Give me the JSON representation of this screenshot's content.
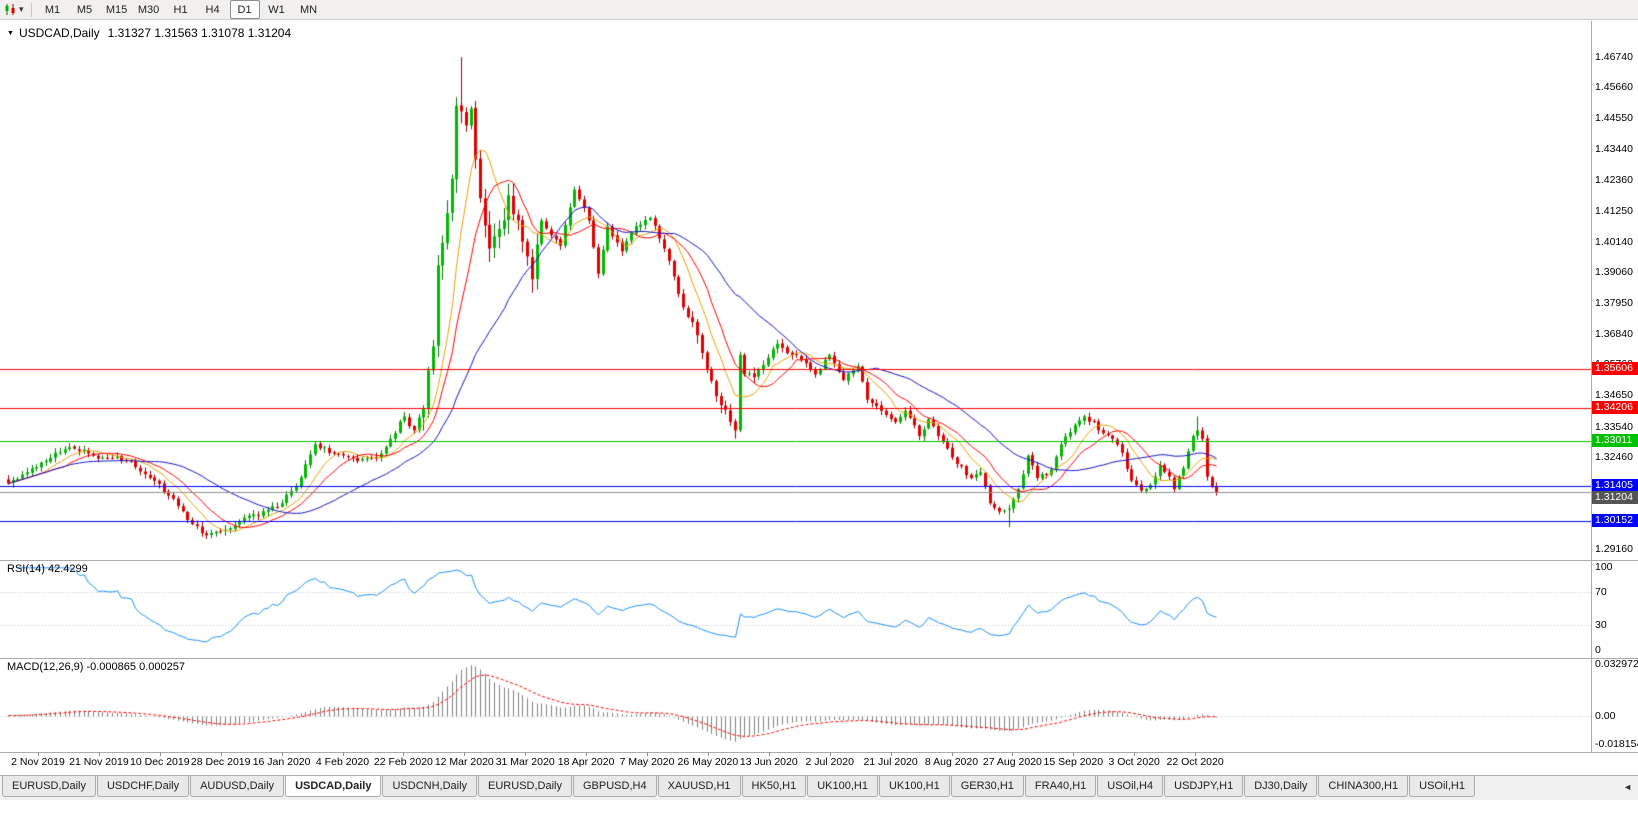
{
  "icons": {
    "chart_type": "candlestick-chart",
    "dropdown_caret": "▾",
    "title_collapse": "▼",
    "tab_scroll_left": "◄"
  },
  "toolbar": {
    "timeframes": [
      "M1",
      "M5",
      "M15",
      "M30",
      "H1",
      "H4",
      "D1",
      "W1",
      "MN"
    ],
    "active_timeframe": "D1"
  },
  "chart_header": {
    "title": "USDCAD,Daily",
    "ohlc_text": "1.31327 1.31563 1.31078 1.31204"
  },
  "chart_data": {
    "type": "candlestick",
    "symbol": "USDCAD",
    "period": "Daily",
    "last_quote": {
      "open": 1.31327,
      "high": 1.31563,
      "low": 1.31078,
      "close": 1.31204
    },
    "price_axis": {
      "min": 1.2877,
      "max": 1.4803,
      "ticks": [
        "1.46740",
        "1.45660",
        "1.44550",
        "1.43440",
        "1.42360",
        "1.41250",
        "1.40140",
        "1.39060",
        "1.37950",
        "1.36840",
        "1.35760",
        "1.34650",
        "1.33540",
        "1.32460",
        "1.31350",
        "1.30240",
        "1.29160"
      ]
    },
    "time_axis": {
      "labels": [
        "2 Nov 2019",
        "21 Nov 2019",
        "10 Dec 2019",
        "28 Dec 2019",
        "16 Jan 2020",
        "4 Feb 2020",
        "22 Feb 2020",
        "12 Mar 2020",
        "31 Mar 2020",
        "18 Apr 2020",
        "7 May 2020",
        "26 May 2020",
        "13 Jun 2020",
        "2 Jul 2020",
        "21 Jul 2020",
        "8 Aug 2020",
        "27 Aug 2020",
        "15 Sep 2020",
        "3 Oct 2020",
        "22 Oct 2020"
      ]
    },
    "horizontal_levels": [
      {
        "price": 1.35606,
        "label": "1.35606",
        "color": "#FF0000"
      },
      {
        "price": 1.34206,
        "label": "1.34206",
        "color": "#FF0000"
      },
      {
        "price": 1.33011,
        "label": "1.33011",
        "color": "#00C000"
      },
      {
        "price": 1.31405,
        "label": "1.31405",
        "color": "#0000FF"
      },
      {
        "price": 1.30152,
        "label": "1.30152",
        "color": "#0000FF"
      }
    ],
    "current_price_line": {
      "price": 1.31204,
      "label": "1.31204",
      "line_color": "#909090",
      "badge_color": "#555555"
    },
    "moving_averages": [
      {
        "period": 8,
        "color": "#E8A200"
      },
      {
        "period": 13,
        "color": "#FF0000"
      },
      {
        "period": 30,
        "color": "#1414CC"
      }
    ],
    "candles": {
      "count": 257,
      "up_color": "#00B800",
      "up_dark": "#007A00",
      "down_color": "#E00000",
      "down_dark": "#A00000",
      "close_anchors": [
        [
          0,
          1.315
        ],
        [
          5,
          1.3205
        ],
        [
          10,
          1.326
        ],
        [
          13,
          1.328
        ],
        [
          18,
          1.325
        ],
        [
          26,
          1.323
        ],
        [
          31,
          1.316
        ],
        [
          36,
          1.307
        ],
        [
          39,
          1.3005
        ],
        [
          42,
          1.2965
        ],
        [
          46,
          1.2985
        ],
        [
          52,
          1.304
        ],
        [
          57,
          1.3065
        ],
        [
          61,
          1.314
        ],
        [
          65,
          1.329
        ],
        [
          70,
          1.3255
        ],
        [
          74,
          1.323
        ],
        [
          78,
          1.324
        ],
        [
          81,
          1.331
        ],
        [
          84,
          1.339
        ],
        [
          86,
          1.334
        ],
        [
          88,
          1.342
        ],
        [
          90,
          1.364
        ],
        [
          91,
          1.393
        ],
        [
          92,
          1.401
        ],
        [
          94,
          1.424
        ],
        [
          95,
          1.45
        ],
        [
          96,
          1.448
        ],
        [
          97,
          1.443
        ],
        [
          98,
          1.449
        ],
        [
          100,
          1.417
        ],
        [
          102,
          1.399
        ],
        [
          104,
          1.406
        ],
        [
          106,
          1.418
        ],
        [
          108,
          1.409
        ],
        [
          111,
          1.388
        ],
        [
          113,
          1.409
        ],
        [
          117,
          1.4
        ],
        [
          120,
          1.42
        ],
        [
          123,
          1.409
        ],
        [
          125,
          1.39
        ],
        [
          127,
          1.407
        ],
        [
          130,
          1.398
        ],
        [
          133,
          1.407
        ],
        [
          136,
          1.41
        ],
        [
          139,
          1.399
        ],
        [
          141,
          1.389
        ],
        [
          143,
          1.378
        ],
        [
          146,
          1.368
        ],
        [
          148,
          1.356
        ],
        [
          151,
          1.343
        ],
        [
          153,
          1.337
        ],
        [
          154,
          1.334
        ],
        [
          155,
          1.361
        ],
        [
          156,
          1.354
        ],
        [
          158,
          1.353
        ],
        [
          161,
          1.36
        ],
        [
          163,
          1.365
        ],
        [
          166,
          1.361
        ],
        [
          169,
          1.358
        ],
        [
          171,
          1.354
        ],
        [
          174,
          1.361
        ],
        [
          177,
          1.352
        ],
        [
          180,
          1.357
        ],
        [
          182,
          1.345
        ],
        [
          185,
          1.341
        ],
        [
          188,
          1.337
        ],
        [
          190,
          1.341
        ],
        [
          193,
          1.332
        ],
        [
          195,
          1.338
        ],
        [
          198,
          1.33
        ],
        [
          201,
          1.322
        ],
        [
          204,
          1.317
        ],
        [
          206,
          1.319
        ],
        [
          208,
          1.308
        ],
        [
          210,
          1.305
        ],
        [
          212,
          1.306
        ],
        [
          214,
          1.313
        ],
        [
          216,
          1.325
        ],
        [
          218,
          1.317
        ],
        [
          221,
          1.32
        ],
        [
          223,
          1.329
        ],
        [
          226,
          1.336
        ],
        [
          228,
          1.339
        ],
        [
          230,
          1.337
        ],
        [
          232,
          1.333
        ],
        [
          234,
          1.331
        ],
        [
          236,
          1.326
        ],
        [
          238,
          1.316
        ],
        [
          240,
          1.3125
        ],
        [
          242,
          1.3145
        ],
        [
          244,
          1.3215
        ],
        [
          246,
          1.3175
        ],
        [
          247,
          1.313
        ],
        [
          249,
          1.3205
        ],
        [
          251,
          1.332
        ],
        [
          252,
          1.334
        ],
        [
          253,
          1.331
        ],
        [
          254,
          1.3175
        ],
        [
          255,
          1.314
        ],
        [
          256,
          1.31204
        ]
      ],
      "extremes": [
        {
          "i": 42,
          "low": 1.2952
        },
        {
          "i": 96,
          "high": 1.4674
        },
        {
          "i": 154,
          "low": 1.3315
        },
        {
          "i": 212,
          "low": 1.2994
        },
        {
          "i": 252,
          "high": 1.339
        }
      ],
      "volatility_zones": [
        {
          "from": 88,
          "to": 112,
          "mult": 3.0
        },
        {
          "from": 145,
          "to": 158,
          "mult": 1.8
        }
      ]
    },
    "rsi": {
      "label": "RSI(14) 42.4299",
      "period": 14,
      "value": 42.4299,
      "axis_ticks": [
        "100",
        "70",
        "30",
        "0"
      ],
      "guide_levels": [
        70,
        30
      ],
      "line_color": "#1E90FF"
    },
    "macd": {
      "label": "MACD(12,26,9) -0.000865 0.000257",
      "fast": 12,
      "slow": 26,
      "signal": 9,
      "values_text": "-0.000865 0.000257",
      "axis_ticks": [
        "0.032972",
        "0.00",
        "-0.018154"
      ],
      "max": 0.032972,
      "min": -0.018154,
      "histogram_color": "#808080",
      "signal_color": "#FF0000"
    }
  },
  "tab_bar": {
    "tabs": [
      "EURUSD,Daily",
      "USDCHF,Daily",
      "AUDUSD,Daily",
      "USDCAD,Daily",
      "USDCNH,Daily",
      "EURUSD,Daily",
      "GBPUSD,H4",
      "XAUUSD,H1",
      "HK50,H1",
      "UK100,H1",
      "UK100,H1",
      "GER30,H1",
      "FRA40,H1",
      "USOil,H4",
      "USDJPY,H1",
      "DJ30,Daily",
      "CHINA300,H1",
      "USOil,H1"
    ],
    "active_index": 3
  }
}
